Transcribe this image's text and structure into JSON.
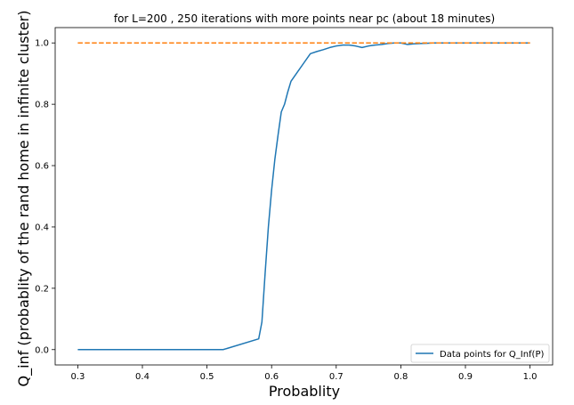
{
  "chart_data": {
    "type": "line",
    "title": "for L=200 , 250 iterations with more points near pc (about 18 minutes)",
    "xlabel": "Probablity",
    "ylabel": "Q_inf (probablity of the rand home in infinite cluster)",
    "xlim": [
      0.265,
      1.035
    ],
    "ylim": [
      -0.05,
      1.05
    ],
    "xticks": [
      0.3,
      0.4,
      0.5,
      0.6,
      0.7,
      0.8,
      0.9,
      1.0
    ],
    "xtick_labels": [
      "0.3",
      "0.4",
      "0.5",
      "0.6",
      "0.7",
      "0.8",
      "0.9",
      "1.0"
    ],
    "yticks": [
      0.0,
      0.2,
      0.4,
      0.6,
      0.8,
      1.0
    ],
    "ytick_labels": [
      "0.0",
      "0.2",
      "0.4",
      "0.6",
      "0.8",
      "1.0"
    ],
    "grid": false,
    "legend_position": "lower-right",
    "series": [
      {
        "name": "Data points for Q_Inf(P)",
        "color": "#1f77b4",
        "style": "solid",
        "x": [
          0.3,
          0.35,
          0.4,
          0.45,
          0.5,
          0.525,
          0.58,
          0.585,
          0.59,
          0.595,
          0.6,
          0.605,
          0.61,
          0.615,
          0.62,
          0.625,
          0.63,
          0.64,
          0.65,
          0.66,
          0.67,
          0.68,
          0.69,
          0.7,
          0.71,
          0.72,
          0.73,
          0.74,
          0.75,
          0.76,
          0.77,
          0.78,
          0.79,
          0.8,
          0.81,
          0.82,
          0.83,
          0.84,
          0.85,
          0.9,
          0.95,
          1.0
        ],
        "y": [
          0.0,
          0.0,
          0.0,
          0.0,
          0.0,
          0.0,
          0.035,
          0.09,
          0.25,
          0.4,
          0.52,
          0.62,
          0.7,
          0.775,
          0.8,
          0.84,
          0.875,
          0.905,
          0.935,
          0.965,
          0.972,
          0.978,
          0.985,
          0.99,
          0.993,
          0.993,
          0.99,
          0.985,
          0.99,
          0.993,
          0.995,
          0.998,
          1.0,
          1.0,
          0.995,
          0.997,
          0.998,
          0.999,
          1.0,
          1.0,
          1.0,
          1.0
        ]
      },
      {
        "color": "#ff7f0e",
        "style": "dashed",
        "x": [
          0.3,
          1.0
        ],
        "y": [
          1.0,
          1.0
        ]
      }
    ]
  }
}
